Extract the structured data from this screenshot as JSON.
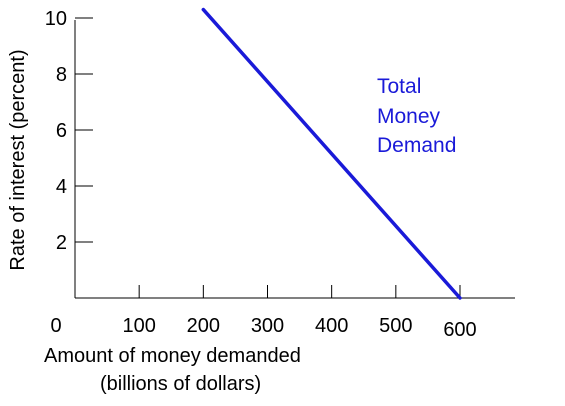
{
  "chart_data": {
    "type": "line",
    "title": "",
    "xlabel_lines": [
      "Amount of money demanded",
      "(billions of dollars)"
    ],
    "ylabel": "Rate of interest (percent)",
    "x_ticks": [
      0,
      100,
      200,
      300,
      400,
      500,
      600
    ],
    "y_ticks": [
      2,
      4,
      6,
      8,
      10
    ],
    "xlim": [
      0,
      600
    ],
    "ylim": [
      0,
      10
    ],
    "grid": false,
    "series": [
      {
        "name_lines": [
          "Total",
          "Money",
          "Demand"
        ],
        "color": "#1a1ad8",
        "x": [
          200,
          600
        ],
        "y": [
          10.3,
          0
        ]
      }
    ]
  }
}
